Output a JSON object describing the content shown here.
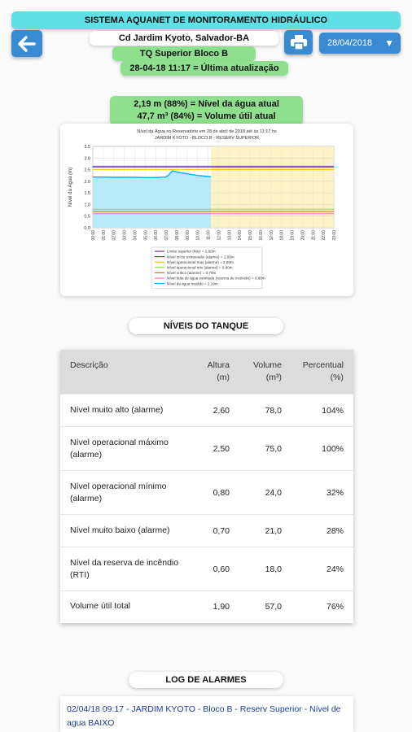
{
  "header": {
    "title": "SISTEMA AQUANET DE MONITORAMENTO HIDRÁULICO",
    "location": "Cd Jardim Kyoto, Salvador-BA",
    "tank": "TQ Superior Bloco B",
    "last_update": "28-04-18 11:17 = Última atualização",
    "date": "28/04/2018"
  },
  "status": {
    "level_line": "2,19 m (88%)  =  Nível da água atual",
    "volume_line": "47,7 m³ (84%)  =  Volume útil atual"
  },
  "chart_data": {
    "type": "area",
    "title": "Nível da Água no Reservatório em 28 de abril de 2018 até às 11:17 hs",
    "subtitle": "JARDIM KYOTO - BLOCO B - RESERV SUPERIOR",
    "ylabel": "Nível da Água (m)",
    "ylim": [
      0,
      3.5
    ],
    "yticks": [
      "0.0",
      "0.5",
      "1.0",
      "1.5",
      "2.0",
      "2.5",
      "3.0",
      "3.5"
    ],
    "x": [
      "00:00",
      "01:00",
      "02:00",
      "03:00",
      "04:00",
      "05:00",
      "06:00",
      "07:00",
      "08:00",
      "09:00",
      "10:00",
      "11:00",
      "12:00",
      "13:00",
      "14:00",
      "15:00",
      "16:00",
      "17:00",
      "18:00",
      "19:00",
      "20:00",
      "21:00",
      "22:00",
      "23:00"
    ],
    "series": [
      {
        "name": "Nível da água medido = 2,19m",
        "color": "#00b0f0",
        "x": [
          0,
          1,
          2,
          3,
          4,
          5,
          6,
          7,
          7.3,
          7.6,
          8,
          9,
          10,
          11.28
        ],
        "values": [
          2.18,
          2.18,
          2.17,
          2.17,
          2.17,
          2.16,
          2.16,
          2.18,
          2.3,
          2.45,
          2.4,
          2.32,
          2.25,
          2.19
        ]
      }
    ],
    "reference_lines": [
      {
        "name": "Limite superior (lido) = 2,65m",
        "value": 2.65,
        "color": "#7030a0"
      },
      {
        "name": "Nível início extravasão (alarme) = 2,60m",
        "value": 2.6,
        "color": "#ff0000"
      },
      {
        "name": "Nível operacional max (alarme) = 2,50m",
        "value": 2.5,
        "color": "#ffc000"
      },
      {
        "name": "Nível operacional min (alarme) = 0,80m",
        "value": 0.8,
        "color": "#92d050"
      },
      {
        "name": "Nível crítico (alarme) = 0,70m",
        "value": 0.7,
        "color": "#ff6600"
      },
      {
        "name": "Nível falta de água estimada (reserva de incêndio) = 0,60m",
        "value": 0.6,
        "color": "#ff66cc"
      }
    ],
    "legend_position": "bottom",
    "grid": true
  },
  "sections": {
    "levels_title": "NÍVEIS DO TANQUE",
    "log_title": "LOG DE ALARMES"
  },
  "table": {
    "headers": {
      "desc": "Descrição",
      "alt": "Altura",
      "alt_unit": "(m)",
      "vol": "Volume",
      "vol_unit": "(m³)",
      "pct": "Percentual",
      "pct_unit": "(%)"
    },
    "rows": [
      {
        "desc": "Nível muito alto (alarme)",
        "alt": "2,60",
        "vol": "78,0",
        "pct": "104%"
      },
      {
        "desc": "Nível operacional máximo (alarme)",
        "alt": "2,50",
        "vol": "75,0",
        "pct": "100%"
      },
      {
        "desc": "Nível operacional mínimo (alarme)",
        "alt": "0,80",
        "vol": "24,0",
        "pct": "32%"
      },
      {
        "desc": "Nível muito baixo (alarme)",
        "alt": "0,70",
        "vol": "21,0",
        "pct": "28%"
      },
      {
        "desc": "Nível da reserva de incêndio (RTI)",
        "alt": "0,60",
        "vol": "18,0",
        "pct": "24%"
      },
      {
        "desc": "Volume útil total",
        "alt": "1,90",
        "vol": "57,0",
        "pct": "76%"
      }
    ]
  },
  "log": {
    "entry": "02/04/18 09:17 - JARDIM KYOTO - Bloco B - Reserv Superior - Nível de agua BAIXO"
  },
  "colors": {
    "accent": "#3a8ad2",
    "title_bar": "#5ee0e6",
    "green": "#8ee08e"
  }
}
